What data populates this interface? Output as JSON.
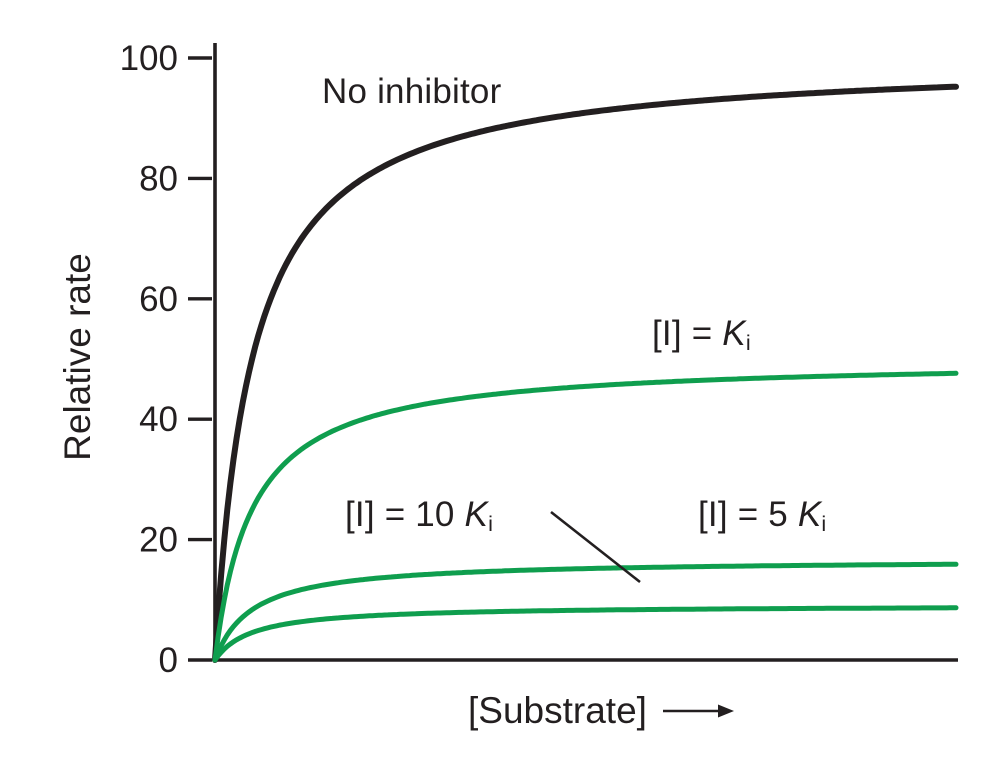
{
  "chart_data": {
    "type": "line",
    "subtype": "michaelis-menten-saturation-curves",
    "title": "",
    "ylabel": "Relative rate",
    "xlabel": "[Substrate]",
    "x_axis_arrow_icon": "right-arrow",
    "ylim": [
      0,
      100
    ],
    "y_ticks": [
      0,
      20,
      40,
      60,
      80,
      100
    ],
    "x_range": [
      0,
      20
    ],
    "km": 1,
    "grid": false,
    "legend": "none-inline-labels",
    "series": [
      {
        "name": "No inhibitor",
        "vmax": 100,
        "approx_value_at_right_edge": 95,
        "color": "#231f20",
        "label_parts": [
          {
            "text": "No inhibitor"
          }
        ]
      },
      {
        "name": "[I] = Ki",
        "vmax": 50,
        "approx_value_at_right_edge": 48,
        "color": "#0f9e4e",
        "label_parts": [
          {
            "text": "[I] = "
          },
          {
            "text": "K",
            "italic": true
          },
          {
            "text": "i",
            "subscript": true
          }
        ]
      },
      {
        "name": "[I] = 5 Ki",
        "vmax": 16.7,
        "approx_value_at_right_edge": 16,
        "color": "#0f9e4e",
        "label_parts": [
          {
            "text": "[I] = 5 "
          },
          {
            "text": "K",
            "italic": true
          },
          {
            "text": "i",
            "subscript": true
          }
        ]
      },
      {
        "name": "[I] = 10 Ki",
        "vmax": 9.1,
        "approx_value_at_right_edge": 9,
        "color": "#0f9e4e",
        "label_parts": [
          {
            "text": "[I] = 10 "
          },
          {
            "text": "K",
            "italic": true
          },
          {
            "text": "i",
            "subscript": true
          }
        ]
      }
    ],
    "leader_line": {
      "attached_to": "[I] = 10 Ki",
      "points_to": "lowest green curve"
    }
  },
  "colors": {
    "background": "#ffffff",
    "axis": "#231f20",
    "text": "#231f20",
    "black_curve": "#231f20",
    "green_curve": "#0f9e4e"
  }
}
